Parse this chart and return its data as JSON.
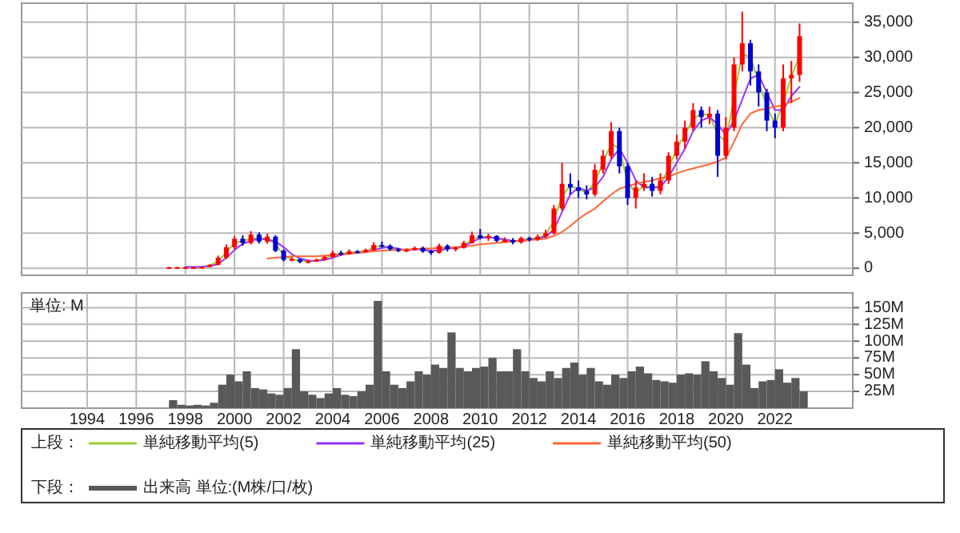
{
  "chart_data": [
    {
      "type": "candlestick",
      "legend": "bottom",
      "legend_title": "上段：",
      "grid": true,
      "tick_labels": "y",
      "xlim": [
        "1991-05",
        "2025-03"
      ],
      "xticks": [
        {
          "value": "1994",
          "label": null
        },
        {
          "value": "1996",
          "label": null
        },
        {
          "value": "1998",
          "label": null
        },
        {
          "value": "2000",
          "label": null
        },
        {
          "value": "2002",
          "label": null
        },
        {
          "value": "2004",
          "label": null
        },
        {
          "value": "2006",
          "label": null
        },
        {
          "value": "2008",
          "label": null
        },
        {
          "value": "2010",
          "label": null
        },
        {
          "value": "2012",
          "label": null
        },
        {
          "value": "2014",
          "label": null
        },
        {
          "value": "2016",
          "label": null
        },
        {
          "value": "2018",
          "label": null
        },
        {
          "value": "2020",
          "label": null
        },
        {
          "value": "2022",
          "label": null
        }
      ],
      "ylim": [
        -1000,
        37700
      ],
      "yticks": [
        0,
        {
          "value": 5000,
          "label": "5,000"
        },
        {
          "value": 10000,
          "label": "10,000"
        },
        {
          "value": 15000,
          "label": "15,000"
        },
        {
          "value": 20000,
          "label": "20,000"
        },
        {
          "value": 25000,
          "label": "25,000"
        },
        {
          "value": 30000,
          "label": "30,000"
        },
        {
          "value": 35000,
          "label": "35,000"
        }
      ],
      "x": [
        "1997-05",
        "1997-09",
        "1998-01",
        "1998-05",
        "1998-09",
        "1999-01",
        "1999-05",
        "1999-09",
        "2000-01",
        "2000-05",
        "2000-09",
        "2001-01",
        "2001-05",
        "2001-09",
        "2002-01",
        "2002-05",
        "2002-09",
        "2003-01",
        "2003-05",
        "2003-09",
        "2004-01",
        "2004-05",
        "2004-09",
        "2005-01",
        "2005-05",
        "2005-09",
        "2006-01",
        "2006-05",
        "2006-09",
        "2007-01",
        "2007-05",
        "2007-09",
        "2008-01",
        "2008-05",
        "2008-09",
        "2009-01",
        "2009-05",
        "2009-09",
        "2010-01",
        "2010-05",
        "2010-09",
        "2011-01",
        "2011-05",
        "2011-09",
        "2012-01",
        "2012-05",
        "2012-09",
        "2013-01",
        "2013-05",
        "2013-09",
        "2014-01",
        "2014-05",
        "2014-09",
        "2015-01",
        "2015-05",
        "2015-09",
        "2016-01",
        "2016-05",
        "2016-09",
        "2017-01",
        "2017-05",
        "2017-09",
        "2018-01",
        "2018-05",
        "2018-09",
        "2019-01",
        "2019-05",
        "2019-09",
        "2020-01",
        "2020-05",
        "2020-09",
        "2021-01",
        "2021-05",
        "2021-09",
        "2022-01",
        "2022-05",
        "2022-09",
        "2023-01"
      ],
      "ohlc": [
        [
          150,
          200,
          100,
          150
        ],
        [
          150,
          200,
          100,
          150
        ],
        [
          150,
          200,
          100,
          150
        ],
        [
          150,
          200,
          100,
          150
        ],
        [
          150,
          250,
          100,
          200
        ],
        [
          200,
          600,
          150,
          500
        ],
        [
          500,
          1800,
          400,
          1500
        ],
        [
          1500,
          3400,
          1300,
          3000
        ],
        [
          3000,
          4600,
          2700,
          4200
        ],
        [
          4200,
          4700,
          3200,
          3600
        ],
        [
          3600,
          5300,
          3400,
          4800
        ],
        [
          4800,
          5100,
          3500,
          3800
        ],
        [
          3800,
          4900,
          3500,
          4500
        ],
        [
          4500,
          4700,
          2300,
          2500
        ],
        [
          2500,
          2700,
          1000,
          1200
        ],
        [
          1200,
          1600,
          1000,
          1300
        ],
        [
          1300,
          1400,
          700,
          900
        ],
        [
          900,
          1200,
          700,
          1000
        ],
        [
          1000,
          1400,
          900,
          1200
        ],
        [
          1200,
          1800,
          1100,
          1600
        ],
        [
          1600,
          2500,
          1500,
          2200
        ],
        [
          2200,
          2500,
          1800,
          2000
        ],
        [
          2000,
          2700,
          1900,
          2400
        ],
        [
          2400,
          2600,
          2100,
          2300
        ],
        [
          2300,
          2800,
          2200,
          2600
        ],
        [
          2600,
          3700,
          2500,
          3300
        ],
        [
          3300,
          3800,
          2900,
          3200
        ],
        [
          3200,
          3400,
          2500,
          2700
        ],
        [
          2700,
          2900,
          2300,
          2500
        ],
        [
          2500,
          2800,
          2300,
          2600
        ],
        [
          2600,
          3100,
          2500,
          2900
        ],
        [
          2900,
          3100,
          2200,
          2400
        ],
        [
          2400,
          2600,
          1900,
          2200
        ],
        [
          2200,
          3500,
          2100,
          3200
        ],
        [
          3200,
          3400,
          2400,
          2700
        ],
        [
          2700,
          3100,
          2400,
          2900
        ],
        [
          2900,
          3900,
          2800,
          3600
        ],
        [
          3600,
          5200,
          3500,
          4700
        ],
        [
          4700,
          5600,
          4100,
          4300
        ],
        [
          4300,
          4900,
          3900,
          4600
        ],
        [
          4600,
          4700,
          3700,
          3900
        ],
        [
          3900,
          4400,
          3700,
          4000
        ],
        [
          4000,
          4300,
          3400,
          3700
        ],
        [
          3700,
          4500,
          3500,
          4300
        ],
        [
          4300,
          4500,
          3800,
          4100
        ],
        [
          4100,
          4800,
          3900,
          4500
        ],
        [
          4500,
          5500,
          4300,
          5000
        ],
        [
          5000,
          9000,
          4800,
          8500
        ],
        [
          8500,
          15000,
          8200,
          12000
        ],
        [
          12000,
          13500,
          10500,
          11500
        ],
        [
          11500,
          12500,
          10000,
          11000
        ],
        [
          11000,
          11800,
          9800,
          10500
        ],
        [
          10500,
          14800,
          10200,
          14000
        ],
        [
          14000,
          16800,
          13500,
          16000
        ],
        [
          16000,
          20800,
          15500,
          19500
        ],
        [
          19500,
          20000,
          13500,
          14500
        ],
        [
          14500,
          15000,
          9000,
          10000
        ],
        [
          10000,
          12500,
          8500,
          11500
        ],
        [
          11500,
          13500,
          11000,
          12000
        ],
        [
          12000,
          13000,
          10200,
          11000
        ],
        [
          11000,
          13500,
          10500,
          12500
        ],
        [
          12500,
          16500,
          12000,
          16000
        ],
        [
          16000,
          19000,
          15500,
          18000
        ],
        [
          18000,
          21000,
          17000,
          20000
        ],
        [
          20000,
          23500,
          19500,
          22500
        ],
        [
          22500,
          23000,
          20000,
          21500
        ],
        [
          21500,
          23000,
          20500,
          22000
        ],
        [
          22000,
          22500,
          13000,
          16000
        ],
        [
          16000,
          21500,
          15500,
          20000
        ],
        [
          20000,
          30000,
          19500,
          29000
        ],
        [
          29000,
          36500,
          28000,
          32000
        ],
        [
          32000,
          32500,
          26000,
          28000
        ],
        [
          28000,
          29000,
          23000,
          25000
        ],
        [
          25000,
          25500,
          19500,
          21000
        ],
        [
          21000,
          22000,
          18500,
          20000
        ],
        [
          20000,
          29000,
          19500,
          27000
        ],
        [
          27000,
          29500,
          23500,
          27500
        ],
        [
          27500,
          34800,
          26500,
          33000
        ]
      ],
      "colors": [
        "#ff0000",
        "#ff0000",
        "#ff0000",
        "#ff0000",
        "#ff0000",
        "#ff0000",
        "#ff0000",
        "#ff0000",
        "#ff0000",
        "#0000cc",
        "#ff0000",
        "#0000cc",
        "#ff0000",
        "#0000cc",
        "#0000cc",
        "#ff0000",
        "#0000cc",
        "#ff0000",
        "#ff0000",
        "#ff0000",
        "#ff0000",
        "#0000cc",
        "#ff0000",
        "#0000cc",
        "#ff0000",
        "#ff0000",
        "#0000cc",
        "#0000cc",
        "#0000cc",
        "#ff0000",
        "#ff0000",
        "#0000cc",
        "#0000cc",
        "#ff0000",
        "#0000cc",
        "#ff0000",
        "#ff0000",
        "#ff0000",
        "#0000cc",
        "#ff0000",
        "#0000cc",
        "#ff0000",
        "#0000cc",
        "#ff0000",
        "#0000cc",
        "#ff0000",
        "#ff0000",
        "#ff0000",
        "#ff0000",
        "#0000cc",
        "#0000cc",
        "#0000cc",
        "#ff0000",
        "#ff0000",
        "#ff0000",
        "#0000cc",
        "#0000cc",
        "#ff0000",
        "#ff0000",
        "#0000cc",
        "#ff0000",
        "#ff0000",
        "#ff0000",
        "#ff0000",
        "#ff0000",
        "#0000cc",
        "#ff0000",
        "#0000cc",
        "#ff0000",
        "#ff0000",
        "#ff0000",
        "#0000cc",
        "#0000cc",
        "#0000cc",
        "#0000cc",
        "#ff0000",
        "#ff0000",
        "#ff0000"
      ],
      "series": [
        {
          "name": "単純移動平均(5)",
          "type": "line",
          "color": "#99cc33",
          "values": [
            null,
            null,
            null,
            null,
            200,
            400,
            1000,
            2250,
            3600,
            3900,
            4200,
            4300,
            4150,
            3500,
            1850,
            1250,
            1100,
            950,
            1100,
            1400,
            1900,
            2100,
            2200,
            2350,
            2450,
            2950,
            3250,
            2950,
            2600,
            2550,
            2750,
            2650,
            2300,
            2700,
            2950,
            2800,
            3250,
            4150,
            4500,
            4450,
            4250,
            3950,
            3850,
            4000,
            4200,
            4300,
            4750,
            6750,
            10250,
            11750,
            11250,
            10750,
            12250,
            15000,
            17750,
            17000,
            12250,
            10750,
            11750,
            11500,
            11750,
            14250,
            17000,
            19000,
            21250,
            22000,
            21750,
            19000,
            18000,
            24500,
            30500,
            30000,
            26500,
            23000,
            20500,
            23500,
            27250,
            30250
          ]
        },
        {
          "name": "単純移動平均(25)",
          "type": "line",
          "color": "#9933ff",
          "values": [
            null,
            null,
            200,
            200,
            200,
            300,
            600,
            1500,
            2600,
            3500,
            3900,
            4200,
            4100,
            3800,
            3000,
            2000,
            1400,
            1100,
            1050,
            1200,
            1500,
            1900,
            2100,
            2200,
            2300,
            2600,
            2900,
            3000,
            2800,
            2600,
            2700,
            2700,
            2500,
            2500,
            2800,
            2900,
            3100,
            3700,
            4300,
            4400,
            4300,
            4100,
            3900,
            3900,
            4000,
            4200,
            4500,
            5500,
            8000,
            10500,
            11500,
            11000,
            11500,
            13000,
            15500,
            17000,
            15000,
            12500,
            11500,
            11500,
            11500,
            13000,
            15000,
            17000,
            19500,
            21000,
            21500,
            20500,
            19000,
            21000,
            24000,
            27000,
            27500,
            25000,
            22500,
            22500,
            24500,
            25800
          ]
        },
        {
          "name": "単純移動平均(50)",
          "type": "line",
          "color": "#ff6633",
          "values": [
            null,
            null,
            null,
            null,
            null,
            null,
            null,
            null,
            null,
            null,
            null,
            null,
            1400,
            1500,
            1600,
            1700,
            1700,
            1700,
            1700,
            1800,
            1900,
            2000,
            2100,
            2200,
            2300,
            2400,
            2500,
            2600,
            2600,
            2700,
            2700,
            2800,
            2800,
            2900,
            2900,
            3000,
            3100,
            3200,
            3400,
            3500,
            3600,
            3700,
            3800,
            3900,
            4000,
            4100,
            4200,
            4600,
            5200,
            6000,
            7000,
            7800,
            8500,
            9500,
            10500,
            11300,
            11700,
            12000,
            12300,
            12500,
            12800,
            13000,
            13500,
            13900,
            14200,
            14500,
            14800,
            15200,
            15700,
            18000,
            20500,
            22000,
            22500,
            22700,
            23000,
            23200,
            23700,
            24200
          ]
        }
      ]
    },
    {
      "type": "bar",
      "legend": "bottom",
      "legend_title": "下段：",
      "grid": true,
      "annotations": [
        "単位: M"
      ],
      "xlim": [
        "1991-05",
        "2025-03"
      ],
      "xticks": [
        "1994",
        "1996",
        "1998",
        "2000",
        "2002",
        "2004",
        "2006",
        "2008",
        "2010",
        "2012",
        "2014",
        "2016",
        "2018",
        "2020",
        "2022"
      ],
      "ylim": [
        0,
        172
      ],
      "yticks": [
        {
          "value": 25,
          "label": "25M"
        },
        {
          "value": 50,
          "label": "50M"
        },
        {
          "value": 75,
          "label": "75M"
        },
        {
          "value": 100,
          "label": "100M"
        },
        {
          "value": 125,
          "label": "125M"
        },
        {
          "value": 150,
          "label": "150M"
        }
      ],
      "x": [
        "1997-05",
        "1997-09",
        "1998-01",
        "1998-05",
        "1998-09",
        "1999-01",
        "1999-05",
        "1999-09",
        "2000-01",
        "2000-05",
        "2000-09",
        "2001-01",
        "2001-05",
        "2001-09",
        "2002-01",
        "2002-05",
        "2002-09",
        "2003-01",
        "2003-05",
        "2003-09",
        "2004-01",
        "2004-05",
        "2004-09",
        "2005-01",
        "2005-05",
        "2005-09",
        "2006-01",
        "2006-05",
        "2006-09",
        "2007-01",
        "2007-05",
        "2007-09",
        "2008-01",
        "2008-05",
        "2008-09",
        "2009-01",
        "2009-05",
        "2009-09",
        "2010-01",
        "2010-05",
        "2010-09",
        "2011-01",
        "2011-05",
        "2011-09",
        "2012-01",
        "2012-05",
        "2012-09",
        "2013-01",
        "2013-05",
        "2013-09",
        "2014-01",
        "2014-05",
        "2014-09",
        "2015-01",
        "2015-05",
        "2015-09",
        "2016-01",
        "2016-05",
        "2016-09",
        "2017-01",
        "2017-05",
        "2017-09",
        "2018-01",
        "2018-05",
        "2018-09",
        "2019-01",
        "2019-05",
        "2019-09",
        "2020-01",
        "2020-05",
        "2020-09",
        "2021-01",
        "2021-05",
        "2021-09",
        "2022-01",
        "2022-05",
        "2022-09",
        "2023-01"
      ],
      "series": [
        {
          "name": "出来高 単位:(M株/口/枚)",
          "color": "#595959",
          "values": [
            12,
            5,
            4,
            5,
            4,
            8,
            35,
            50,
            40,
            55,
            30,
            28,
            22,
            20,
            30,
            88,
            25,
            20,
            15,
            22,
            30,
            20,
            18,
            25,
            35,
            160,
            55,
            35,
            30,
            40,
            55,
            50,
            65,
            60,
            113,
            60,
            55,
            60,
            62,
            75,
            55,
            55,
            88,
            55,
            45,
            40,
            55,
            45,
            60,
            68,
            50,
            60,
            40,
            35,
            50,
            45,
            55,
            62,
            52,
            42,
            40,
            38,
            50,
            52,
            50,
            70,
            55,
            45,
            35,
            112,
            65,
            30,
            40,
            42,
            58,
            38,
            45,
            25
          ]
        }
      ]
    }
  ]
}
